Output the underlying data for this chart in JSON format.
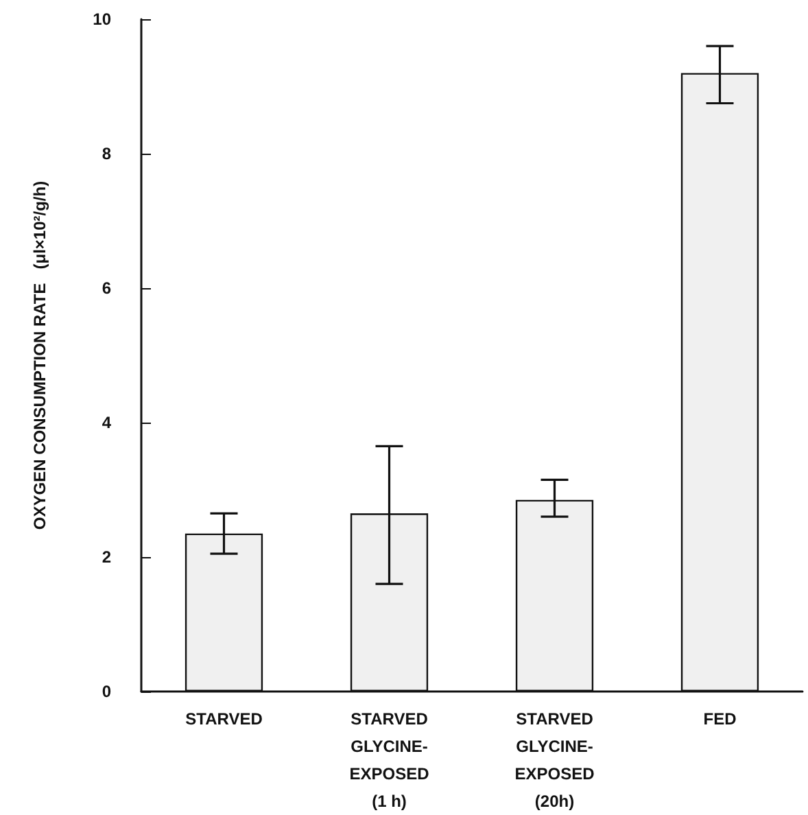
{
  "chart_data": {
    "type": "bar",
    "ylabel": "OXYGEN CONSUMPTION RATE   (μl×10²/g/h)",
    "categories": [
      "STARVED",
      "STARVED\nGLYCINE-\nEXPOSED\n(1 h)",
      "STARVED\nGLYCINE-\nEXPOSED\n(20h)",
      "FED"
    ],
    "values": [
      2.35,
      2.65,
      2.85,
      9.2
    ],
    "errors": [
      [
        2.05,
        2.65
      ],
      [
        1.6,
        3.65
      ],
      [
        2.6,
        3.15
      ],
      [
        8.75,
        9.6
      ]
    ],
    "color": "#f0f0f0",
    "ylim": [
      0,
      10
    ],
    "yticks": [
      0,
      2,
      4,
      6,
      8,
      10
    ],
    "grid": false
  }
}
